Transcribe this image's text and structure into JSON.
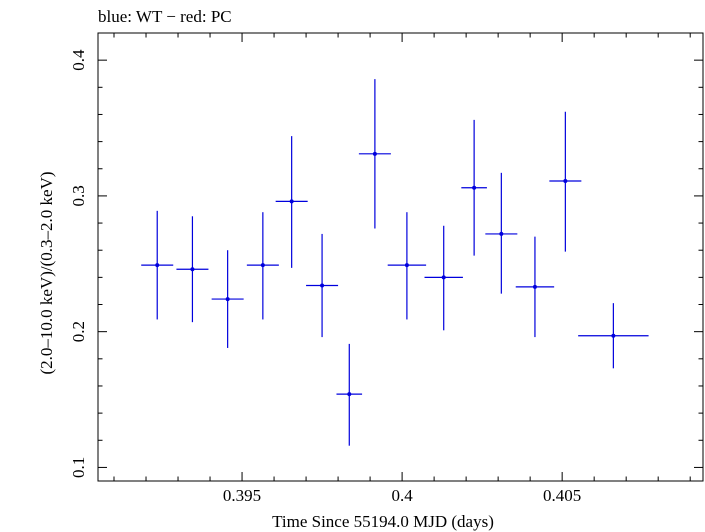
{
  "chart_data": {
    "type": "scatter",
    "title": "blue: WT − red: PC",
    "xlabel": "Time Since 55194.0 MJD (days)",
    "ylabel": "(2.0–10.0 keV)/(0.3–2.0 keV)",
    "xlim": [
      0.3905,
      0.4094
    ],
    "ylim": [
      0.09,
      0.42
    ],
    "x_ticks": [
      0.395,
      0.4,
      0.405
    ],
    "x_tick_labels": [
      "0.395",
      "0.4",
      "0.405"
    ],
    "y_ticks": [
      0.1,
      0.2,
      0.3,
      0.4
    ],
    "y_tick_labels": [
      "0.1",
      "0.2",
      "0.3",
      "0.4"
    ],
    "grid": false,
    "colors": {
      "series": "#0000dd",
      "axes": "#000000"
    },
    "series": [
      {
        "color": "#0000dd",
        "points": [
          {
            "x": 0.39235,
            "xerr": 0.0005,
            "y": 0.249,
            "ylo": 0.209,
            "yhi": 0.289
          },
          {
            "x": 0.39345,
            "xerr": 0.0005,
            "y": 0.246,
            "ylo": 0.207,
            "yhi": 0.285
          },
          {
            "x": 0.39455,
            "xerr": 0.0005,
            "y": 0.224,
            "ylo": 0.188,
            "yhi": 0.26
          },
          {
            "x": 0.39565,
            "xerr": 0.0005,
            "y": 0.249,
            "ylo": 0.209,
            "yhi": 0.288
          },
          {
            "x": 0.39655,
            "xerr": 0.0005,
            "y": 0.296,
            "ylo": 0.247,
            "yhi": 0.344
          },
          {
            "x": 0.3975,
            "xerr": 0.0005,
            "y": 0.234,
            "ylo": 0.196,
            "yhi": 0.272
          },
          {
            "x": 0.39835,
            "xerr": 0.0004,
            "y": 0.154,
            "ylo": 0.116,
            "yhi": 0.191
          },
          {
            "x": 0.39915,
            "xerr": 0.0005,
            "y": 0.331,
            "ylo": 0.276,
            "yhi": 0.386
          },
          {
            "x": 0.40015,
            "xerr": 0.0006,
            "y": 0.249,
            "ylo": 0.209,
            "yhi": 0.288
          },
          {
            "x": 0.4013,
            "xerr": 0.0006,
            "y": 0.24,
            "ylo": 0.201,
            "yhi": 0.278
          },
          {
            "x": 0.40225,
            "xerr": 0.0004,
            "y": 0.306,
            "ylo": 0.256,
            "yhi": 0.356
          },
          {
            "x": 0.4031,
            "xerr": 0.0005,
            "y": 0.272,
            "ylo": 0.228,
            "yhi": 0.317
          },
          {
            "x": 0.40415,
            "xerr": 0.0006,
            "y": 0.233,
            "ylo": 0.196,
            "yhi": 0.27
          },
          {
            "x": 0.4051,
            "xerr": 0.0005,
            "y": 0.311,
            "ylo": 0.259,
            "yhi": 0.362
          },
          {
            "x": 0.4066,
            "xerr": 0.0011,
            "y": 0.197,
            "ylo": 0.173,
            "yhi": 0.221
          }
        ]
      }
    ]
  }
}
